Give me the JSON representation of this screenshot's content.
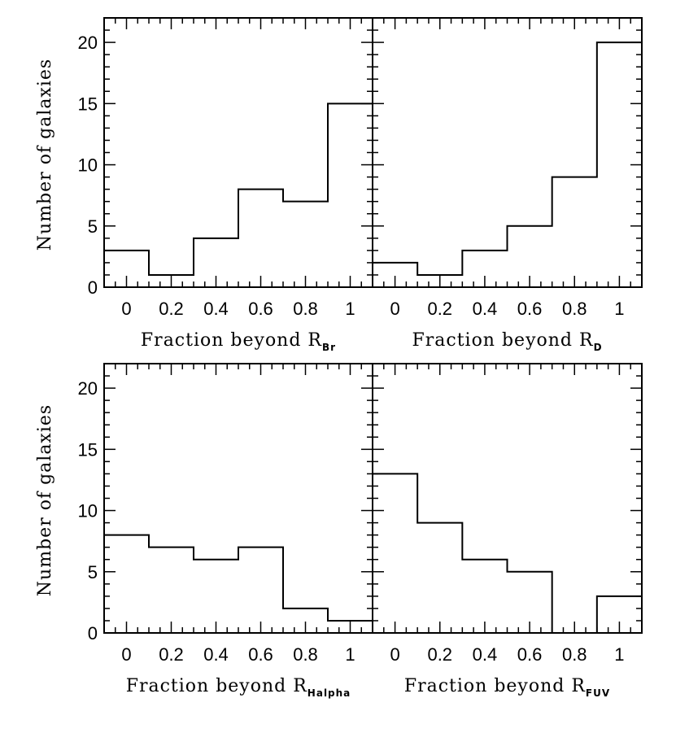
{
  "figure": {
    "ylabel": "Number of galaxies"
  },
  "chart_data": [
    {
      "type": "bar",
      "panel": "top-left",
      "xlabel": "Fraction beyond R",
      "xlabel_sub": "Br",
      "bin_edges": [
        -0.1,
        0.1,
        0.3,
        0.5,
        0.7,
        0.9,
        1.1
      ],
      "counts": [
        3,
        1,
        4,
        8,
        7,
        15
      ],
      "xlim": [
        -0.1,
        1.1
      ],
      "ylim": [
        0,
        22
      ],
      "xticks": [
        0,
        0.2,
        0.4,
        0.6,
        0.8,
        1
      ],
      "xtick_labels": [
        "0",
        "0.2",
        "0.4",
        "0.6",
        "0.8",
        "1"
      ],
      "yticks": [
        0,
        5,
        10,
        15,
        20
      ],
      "ytick_labels": [
        "0",
        "5",
        "10",
        "15",
        "20"
      ]
    },
    {
      "type": "bar",
      "panel": "top-right",
      "xlabel": "Fraction beyond R",
      "xlabel_sub": "D",
      "bin_edges": [
        -0.1,
        0.1,
        0.3,
        0.5,
        0.7,
        0.9,
        1.1
      ],
      "counts": [
        2,
        1,
        3,
        5,
        9,
        20
      ],
      "xlim": [
        -0.1,
        1.1
      ],
      "ylim": [
        0,
        22
      ],
      "xticks": [
        0,
        0.2,
        0.4,
        0.6,
        0.8,
        1
      ],
      "xtick_labels": [
        "0",
        "0.2",
        "0.4",
        "0.6",
        "0.8",
        "1"
      ],
      "yticks": [
        0,
        5,
        10,
        15,
        20
      ],
      "ytick_labels": []
    },
    {
      "type": "bar",
      "panel": "bottom-left",
      "xlabel": "Fraction beyond R",
      "xlabel_sub": "Halpha",
      "bin_edges": [
        -0.1,
        0.1,
        0.3,
        0.5,
        0.7,
        0.9,
        1.1
      ],
      "counts": [
        8,
        7,
        6,
        7,
        2,
        1
      ],
      "xlim": [
        -0.1,
        1.1
      ],
      "ylim": [
        0,
        22
      ],
      "xticks": [
        0,
        0.2,
        0.4,
        0.6,
        0.8,
        1
      ],
      "xtick_labels": [
        "0",
        "0.2",
        "0.4",
        "0.6",
        "0.8",
        "1"
      ],
      "yticks": [
        0,
        5,
        10,
        15,
        20
      ],
      "ytick_labels": [
        "0",
        "5",
        "10",
        "15",
        "20"
      ]
    },
    {
      "type": "bar",
      "panel": "bottom-right",
      "xlabel": "Fraction beyond R",
      "xlabel_sub": "FUV",
      "bin_edges": [
        -0.1,
        0.1,
        0.3,
        0.5,
        0.7,
        0.9,
        1.1
      ],
      "counts": [
        13,
        9,
        6,
        5,
        0,
        3
      ],
      "xlim": [
        -0.1,
        1.1
      ],
      "ylim": [
        0,
        22
      ],
      "xticks": [
        0,
        0.2,
        0.4,
        0.6,
        0.8,
        1
      ],
      "xtick_labels": [
        "0",
        "0.2",
        "0.4",
        "0.6",
        "0.8",
        "1"
      ],
      "yticks": [
        0,
        5,
        10,
        15,
        20
      ],
      "ytick_labels": []
    }
  ]
}
